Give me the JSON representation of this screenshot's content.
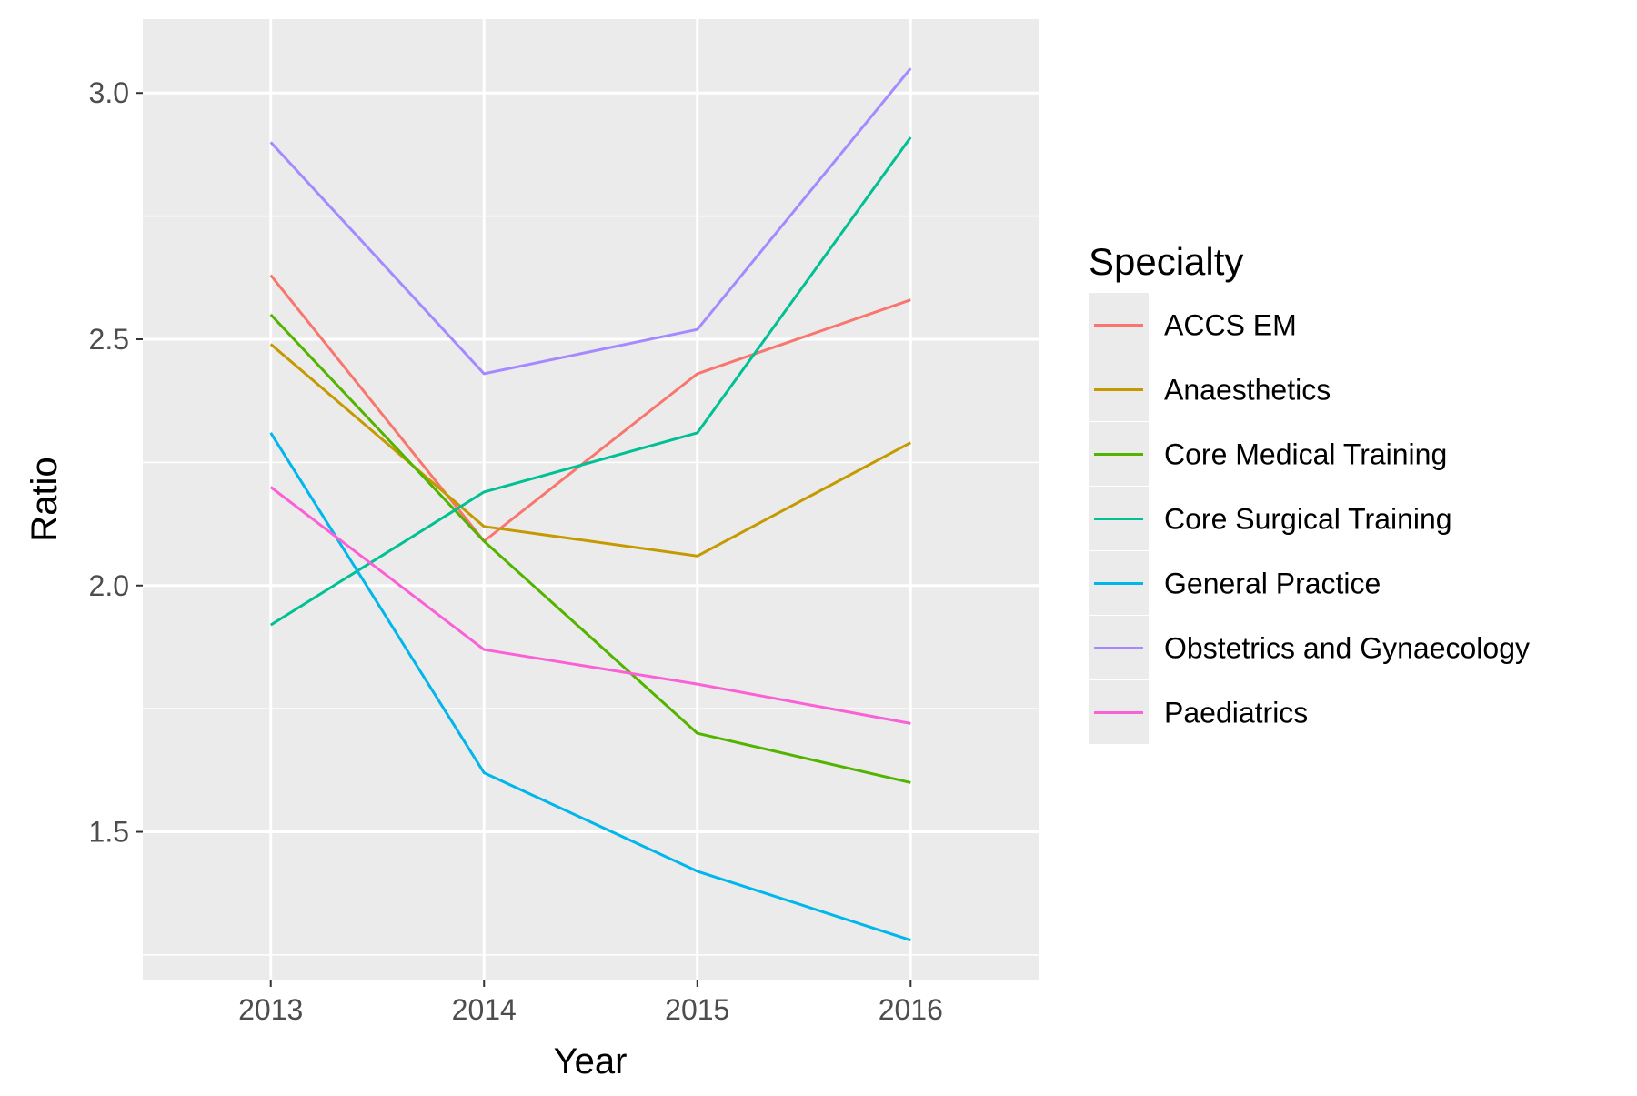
{
  "chart_data": {
    "type": "line",
    "xlabel": "Year",
    "ylabel": "Ratio",
    "x": [
      2013,
      2014,
      2015,
      2016
    ],
    "x_tick_labels": [
      "2013",
      "2014",
      "2015",
      "2016"
    ],
    "xlim": [
      2012.4,
      2016.6
    ],
    "ylim": [
      1.2,
      3.15
    ],
    "y_ticks": [
      1.5,
      2.0,
      2.5,
      3.0
    ],
    "y_tick_labels": [
      "1.5",
      "2.0",
      "2.5",
      "3.0"
    ],
    "grid": true,
    "background": "#ebebeb",
    "legend": {
      "title": "Specialty",
      "position": "right"
    },
    "series": [
      {
        "name": "ACCS EM",
        "color": "#F8766D",
        "values": [
          2.63,
          2.09,
          2.43,
          2.58
        ]
      },
      {
        "name": "Anaesthetics",
        "color": "#C49A00",
        "values": [
          2.49,
          2.12,
          2.06,
          2.29
        ]
      },
      {
        "name": "Core Medical Training",
        "color": "#53B400",
        "values": [
          2.55,
          2.09,
          1.7,
          1.6
        ]
      },
      {
        "name": "Core Surgical Training",
        "color": "#00C094",
        "values": [
          1.92,
          2.19,
          2.31,
          2.91
        ]
      },
      {
        "name": "General Practice",
        "color": "#00B6EB",
        "values": [
          2.31,
          1.62,
          1.42,
          1.28
        ]
      },
      {
        "name": "Obstetrics and Gynaecology",
        "color": "#A58AFF",
        "values": [
          2.9,
          2.43,
          2.52,
          3.05
        ]
      },
      {
        "name": "Paediatrics",
        "color": "#FB61D7",
        "values": [
          2.2,
          1.87,
          1.8,
          1.72
        ]
      }
    ]
  }
}
